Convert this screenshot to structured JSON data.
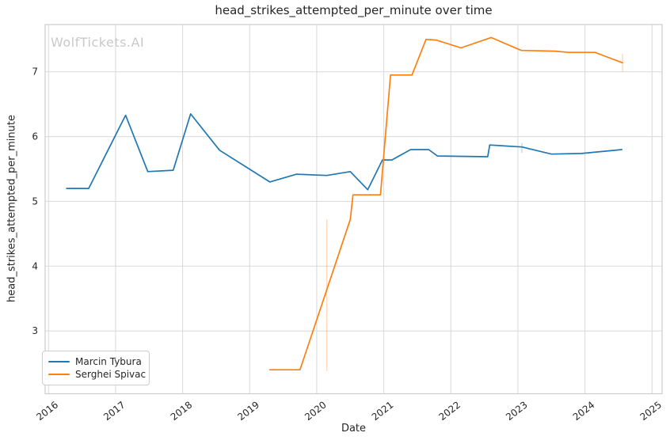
{
  "watermark": "WolfTickets.AI",
  "colors": {
    "background": "#ffffff",
    "text": "#262626",
    "grid": "#d8d8d8",
    "spine": "#cccccc",
    "watermark": "#c9c9c9",
    "series_blue": "#1f77b4",
    "series_orange": "#ff7f0e"
  },
  "chart_data": {
    "type": "line",
    "title": "head_strikes_attempted_per_minute over time",
    "xlabel": "Date",
    "ylabel": "head_strikes_attempted_per_minute",
    "xlim": [
      2015.95,
      2025.15
    ],
    "ylim": [
      2.03,
      7.73
    ],
    "x_ticks": [
      2016,
      2017,
      2018,
      2019,
      2020,
      2021,
      2022,
      2023,
      2024,
      2025
    ],
    "y_ticks": [
      3,
      4,
      5,
      6,
      7
    ],
    "grid": true,
    "legend_position": "lower-left",
    "series": [
      {
        "name": "Marcin Tybura",
        "color": "#1f77b4",
        "x": [
          2016.27,
          2016.6,
          2017.15,
          2017.48,
          2017.86,
          2018.12,
          2018.55,
          2019.3,
          2019.7,
          2020.15,
          2020.5,
          2020.76,
          2020.98,
          2021.12,
          2021.4,
          2021.67,
          2021.8,
          2022.55,
          2022.58,
          2023.06,
          2023.5,
          2023.95,
          2024.55
        ],
        "y": [
          5.2,
          5.2,
          6.33,
          5.46,
          5.48,
          6.35,
          5.79,
          5.3,
          5.42,
          5.4,
          5.46,
          5.18,
          5.64,
          5.64,
          5.8,
          5.8,
          5.7,
          5.69,
          5.87,
          5.84,
          5.73,
          5.74,
          5.8
        ],
        "error_bars": [
          {
            "x": 2023.06,
            "low": 5.75,
            "high": 5.9
          }
        ]
      },
      {
        "name": "Serghei Spivac",
        "color": "#ff7f0e",
        "x": [
          2019.3,
          2019.75,
          2020.5,
          2020.54,
          2020.95,
          2021.1,
          2021.42,
          2021.63,
          2021.78,
          2022.15,
          2022.6,
          2023.05,
          2023.55,
          2023.75,
          2024.15,
          2024.56
        ],
        "y": [
          2.4,
          2.4,
          4.72,
          5.1,
          5.1,
          6.95,
          6.95,
          7.5,
          7.49,
          7.37,
          7.53,
          7.33,
          7.32,
          7.3,
          7.3,
          7.14
        ],
        "error_bars": [
          {
            "x": 2020.15,
            "low": 2.38,
            "high": 4.72
          },
          {
            "x": 2024.56,
            "low": 7.0,
            "high": 7.28
          }
        ]
      }
    ]
  }
}
